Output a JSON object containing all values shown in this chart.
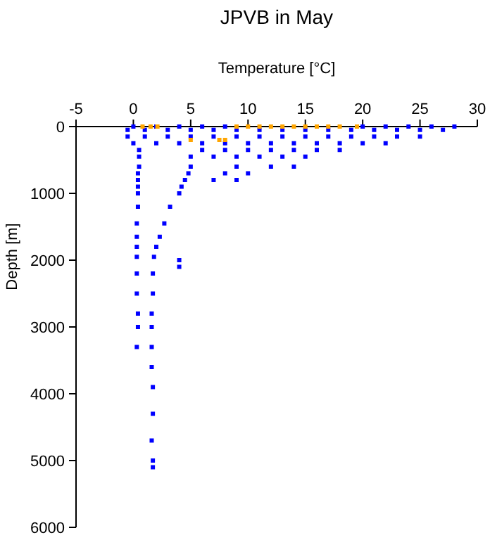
{
  "chart_data": {
    "type": "scatter",
    "title": "JPVB in May",
    "xlabel": "Temperature [°C]",
    "ylabel": "Depth [m]",
    "xlim": [
      -5,
      30
    ],
    "xticks": [
      -5,
      0,
      5,
      10,
      15,
      20,
      25,
      30
    ],
    "ylim": [
      6000,
      0
    ],
    "yticks": [
      0,
      1000,
      2000,
      3000,
      4000,
      5000,
      6000
    ],
    "marker": "square",
    "grid": false,
    "series": [
      {
        "color": "#0000ff",
        "x": [
          0,
          2,
          4,
          6,
          8,
          20,
          22,
          24,
          26,
          28,
          -0.5,
          1,
          3,
          5,
          7,
          9,
          11,
          13,
          15,
          17,
          19,
          21,
          23,
          25,
          27,
          -0.5,
          1,
          3,
          5,
          7,
          9,
          11,
          13,
          15,
          17,
          19,
          21,
          23,
          25,
          0,
          2,
          4,
          6,
          8,
          10,
          12,
          14,
          16,
          18,
          20,
          22,
          0.5,
          6,
          8,
          10,
          12,
          14,
          16,
          18,
          0.5,
          5,
          7,
          9,
          11,
          13,
          15,
          0.5,
          5,
          9,
          12,
          14,
          0.4,
          4.8,
          8,
          10,
          0.4,
          4.5,
          7,
          9,
          0.4,
          4.2,
          0.4,
          4,
          0.4,
          3.2,
          0.3,
          2.7,
          0.3,
          2.3,
          0.3,
          2,
          0.3,
          1.8,
          4,
          4,
          0.3,
          1.7,
          0.3,
          1.7,
          0.4,
          1.6,
          0.4,
          1.6,
          0.3,
          1.6,
          1.6,
          1.7,
          1.7,
          1.6,
          1.7,
          1.7
        ],
        "values": [
          0,
          0,
          0,
          0,
          0,
          0,
          0,
          0,
          0,
          0,
          50,
          50,
          50,
          50,
          50,
          50,
          50,
          50,
          50,
          50,
          50,
          50,
          50,
          50,
          50,
          150,
          150,
          150,
          150,
          150,
          150,
          150,
          150,
          150,
          150,
          150,
          150,
          150,
          150,
          250,
          250,
          250,
          250,
          250,
          250,
          250,
          250,
          250,
          250,
          250,
          250,
          350,
          350,
          350,
          350,
          350,
          350,
          350,
          350,
          450,
          450,
          450,
          450,
          450,
          450,
          450,
          600,
          600,
          600,
          600,
          600,
          700,
          700,
          700,
          700,
          800,
          800,
          800,
          800,
          900,
          900,
          1000,
          1000,
          1200,
          1200,
          1450,
          1450,
          1650,
          1650,
          1800,
          1800,
          1950,
          1950,
          2000,
          2100,
          2200,
          2200,
          2500,
          2500,
          2800,
          2800,
          3000,
          3000,
          3300,
          3300,
          3600,
          3900,
          4300,
          4700,
          5000,
          5100
        ]
      },
      {
        "color": "#ffa500",
        "x": [
          0.8,
          1.5,
          2.1,
          9,
          10,
          11,
          12,
          13,
          14,
          15,
          16,
          17,
          18,
          19.5,
          5,
          7.5,
          8
        ],
        "values": [
          0,
          0,
          0,
          0,
          0,
          0,
          0,
          0,
          0,
          0,
          0,
          0,
          0,
          0,
          200,
          200,
          200
        ]
      }
    ]
  }
}
